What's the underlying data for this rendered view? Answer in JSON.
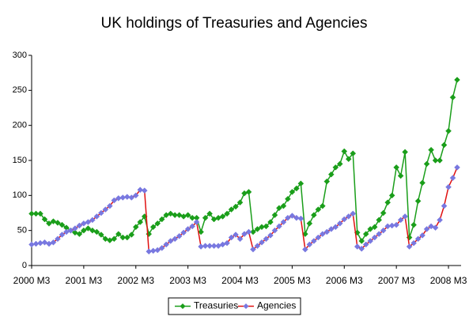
{
  "chart_data": {
    "type": "line",
    "title": "UK holdings of Treasuries and Agencies",
    "categories": [
      "2000 M3",
      null,
      null,
      null,
      null,
      null,
      null,
      null,
      null,
      null,
      null,
      null,
      "2001 M3",
      null,
      null,
      null,
      null,
      null,
      null,
      null,
      null,
      null,
      null,
      null,
      "2002 M3",
      null,
      null,
      null,
      null,
      null,
      null,
      null,
      null,
      null,
      null,
      null,
      "2003 M3",
      null,
      null,
      null,
      null,
      null,
      null,
      null,
      null,
      null,
      null,
      null,
      "2004 M3",
      null,
      null,
      null,
      null,
      null,
      null,
      null,
      null,
      null,
      null,
      null,
      "2005 M3",
      null,
      null,
      null,
      null,
      null,
      null,
      null,
      null,
      null,
      null,
      null,
      "2006 M3",
      null,
      null,
      null,
      null,
      null,
      null,
      null,
      null,
      null,
      null,
      null,
      "2007 M3",
      null,
      null,
      null,
      null,
      null,
      null,
      null,
      null,
      null,
      null,
      null,
      "2008 M3",
      null,
      null
    ],
    "series": [
      {
        "name": "Treasuries",
        "color": "#1a9e1a",
        "marker_color": "#1a9e1a",
        "values": [
          74,
          74,
          74,
          66,
          60,
          63,
          61,
          58,
          54,
          50,
          47,
          45,
          50,
          53,
          50,
          48,
          44,
          38,
          36,
          38,
          45,
          40,
          40,
          44,
          55,
          62,
          70,
          45,
          55,
          60,
          66,
          72,
          74,
          72,
          72,
          70,
          72,
          68,
          68,
          48,
          68,
          74,
          66,
          68,
          70,
          74,
          80,
          84,
          90,
          103,
          105,
          48,
          52,
          55,
          56,
          62,
          72,
          82,
          85,
          95,
          105,
          110,
          117,
          45,
          60,
          72,
          80,
          85,
          120,
          130,
          140,
          145,
          163,
          152,
          160,
          47,
          35,
          45,
          52,
          55,
          65,
          75,
          90,
          100,
          140,
          128,
          162,
          40,
          58,
          92,
          118,
          145,
          165,
          150,
          150,
          172,
          192,
          240,
          265
        ]
      },
      {
        "name": "Agencies",
        "color": "#e01010",
        "marker_color": "#7878e0",
        "values": [
          30,
          31,
          32,
          33,
          31,
          33,
          38,
          44,
          48,
          50,
          53,
          57,
          60,
          62,
          65,
          70,
          75,
          80,
          85,
          93,
          96,
          97,
          98,
          97,
          100,
          108,
          107,
          20,
          21,
          22,
          25,
          30,
          35,
          38,
          42,
          47,
          52,
          56,
          62,
          27,
          28,
          28,
          28,
          28,
          30,
          32,
          40,
          44,
          38,
          45,
          48,
          23,
          28,
          33,
          38,
          43,
          50,
          56,
          62,
          68,
          71,
          68,
          67,
          23,
          30,
          35,
          40,
          45,
          48,
          52,
          55,
          60,
          66,
          70,
          74,
          27,
          24,
          30,
          35,
          40,
          45,
          50,
          56,
          57,
          58,
          65,
          70,
          27,
          32,
          38,
          43,
          52,
          56,
          54,
          65,
          85,
          112,
          125,
          140
        ]
      }
    ],
    "ylim": [
      0,
      300
    ],
    "yticks": [
      0,
      50,
      100,
      150,
      200,
      250,
      300
    ],
    "grid": false,
    "legend": "bottom"
  }
}
